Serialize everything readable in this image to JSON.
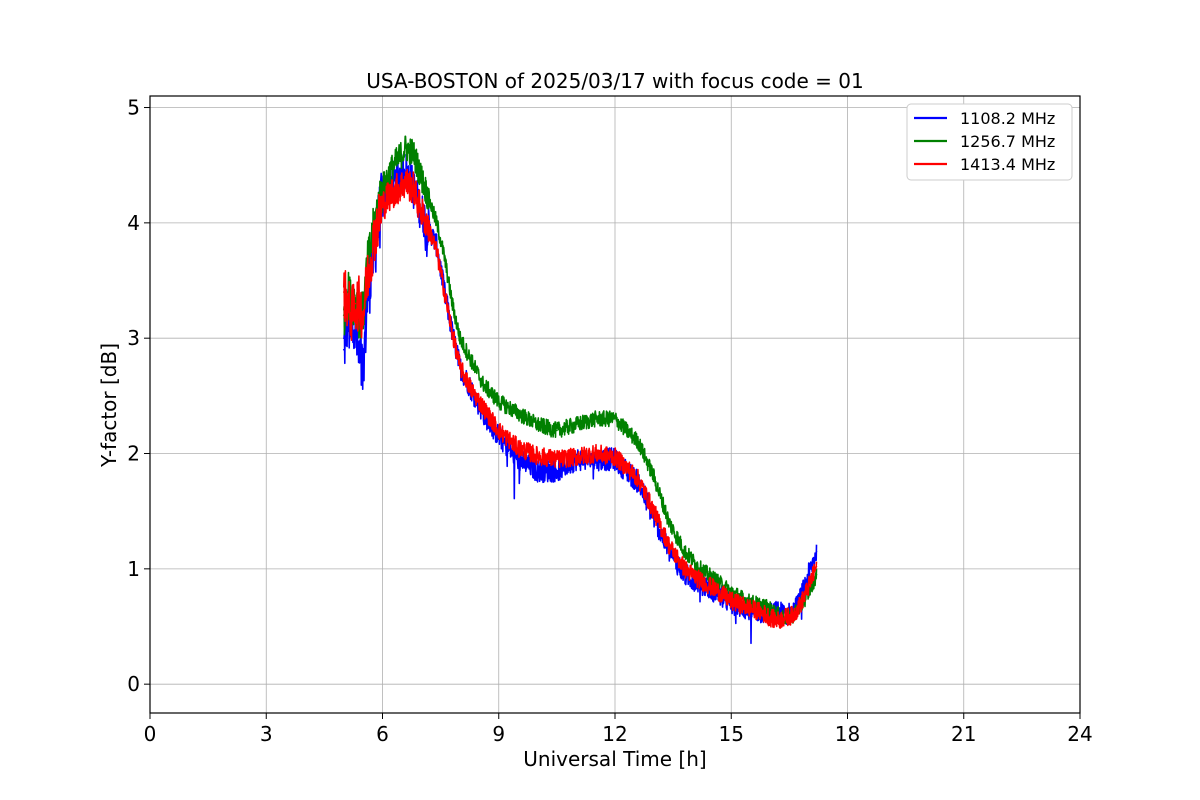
{
  "chart_data": {
    "type": "line",
    "title": "USA-BOSTON of 2025/03/17 with focus code = 01",
    "xlabel": "Universal Time [h]",
    "ylabel": "Y-factor [dB]",
    "xlim": [
      0,
      24
    ],
    "ylim": [
      -0.25,
      5.1
    ],
    "xticks": [
      0,
      3,
      6,
      9,
      12,
      15,
      18,
      21,
      24
    ],
    "yticks": [
      0,
      1,
      2,
      3,
      4,
      5
    ],
    "grid": true,
    "legend_position": "top-right",
    "series": [
      {
        "name": "1108.2 MHz",
        "color": "#0000ff",
        "x": [
          5.0,
          5.1,
          5.2,
          5.3,
          5.4,
          5.5,
          5.6,
          5.7,
          5.8,
          6.0,
          6.2,
          6.4,
          6.6,
          6.8,
          7.0,
          7.2,
          7.4,
          7.6,
          7.8,
          8.0,
          8.3,
          8.6,
          9.0,
          9.5,
          10.0,
          10.5,
          11.0,
          11.5,
          12.0,
          12.3,
          12.6,
          13.0,
          13.4,
          13.8,
          14.2,
          14.6,
          15.0,
          15.4,
          15.8,
          16.0,
          16.2,
          16.4,
          16.6,
          16.8,
          17.0,
          17.2
        ],
        "y": [
          2.9,
          3.2,
          3.0,
          3.1,
          2.8,
          2.7,
          3.3,
          3.6,
          3.8,
          4.2,
          4.35,
          4.4,
          4.45,
          4.3,
          4.1,
          3.95,
          3.8,
          3.4,
          3.05,
          2.75,
          2.55,
          2.35,
          2.15,
          1.95,
          1.85,
          1.85,
          1.95,
          1.95,
          1.95,
          1.85,
          1.75,
          1.45,
          1.15,
          0.95,
          0.88,
          0.8,
          0.7,
          0.65,
          0.62,
          0.6,
          0.63,
          0.6,
          0.62,
          0.75,
          0.95,
          1.15
        ]
      },
      {
        "name": "1256.7 MHz",
        "color": "#008000",
        "x": [
          5.0,
          5.1,
          5.2,
          5.3,
          5.4,
          5.5,
          5.6,
          5.7,
          5.8,
          6.0,
          6.2,
          6.4,
          6.6,
          6.8,
          7.0,
          7.2,
          7.4,
          7.6,
          7.8,
          8.0,
          8.3,
          8.6,
          9.0,
          9.5,
          10.0,
          10.5,
          11.0,
          11.5,
          12.0,
          12.3,
          12.6,
          13.0,
          13.4,
          13.8,
          14.2,
          14.6,
          15.0,
          15.4,
          15.8,
          16.0,
          16.2,
          16.4,
          16.6,
          16.8,
          17.0,
          17.2
        ],
        "y": [
          3.2,
          3.4,
          3.3,
          3.35,
          3.2,
          3.2,
          3.6,
          3.8,
          4.0,
          4.3,
          4.45,
          4.55,
          4.65,
          4.6,
          4.4,
          4.2,
          4.0,
          3.7,
          3.3,
          3.0,
          2.8,
          2.6,
          2.45,
          2.35,
          2.25,
          2.2,
          2.25,
          2.3,
          2.3,
          2.2,
          2.1,
          1.8,
          1.4,
          1.15,
          1.0,
          0.9,
          0.8,
          0.72,
          0.68,
          0.65,
          0.6,
          0.58,
          0.6,
          0.68,
          0.8,
          0.95
        ]
      },
      {
        "name": "1413.4 MHz",
        "color": "#ff0000",
        "x": [
          5.0,
          5.1,
          5.2,
          5.3,
          5.4,
          5.5,
          5.6,
          5.7,
          5.8,
          6.0,
          6.2,
          6.4,
          6.6,
          6.8,
          7.0,
          7.2,
          7.4,
          7.6,
          7.8,
          8.0,
          8.3,
          8.6,
          9.0,
          9.5,
          10.0,
          10.5,
          11.0,
          11.5,
          12.0,
          12.3,
          12.6,
          13.0,
          13.4,
          13.8,
          14.2,
          14.6,
          15.0,
          15.4,
          15.8,
          16.0,
          16.2,
          16.4,
          16.6,
          16.8,
          17.0,
          17.2
        ],
        "y": [
          3.4,
          3.3,
          3.2,
          3.3,
          3.3,
          3.2,
          3.5,
          3.7,
          3.9,
          4.15,
          4.25,
          4.3,
          4.35,
          4.3,
          4.1,
          3.95,
          3.75,
          3.4,
          3.05,
          2.75,
          2.55,
          2.4,
          2.2,
          2.05,
          1.98,
          1.95,
          1.97,
          2.0,
          1.97,
          1.88,
          1.78,
          1.5,
          1.2,
          1.0,
          0.9,
          0.82,
          0.72,
          0.67,
          0.62,
          0.58,
          0.55,
          0.58,
          0.6,
          0.7,
          0.85,
          1.02
        ]
      }
    ],
    "legend": [
      {
        "name": "1108.2 MHz",
        "color": "#0000ff"
      },
      {
        "name": "1256.7 MHz",
        "color": "#008000"
      },
      {
        "name": "1413.4 MHz",
        "color": "#ff0000"
      }
    ]
  }
}
